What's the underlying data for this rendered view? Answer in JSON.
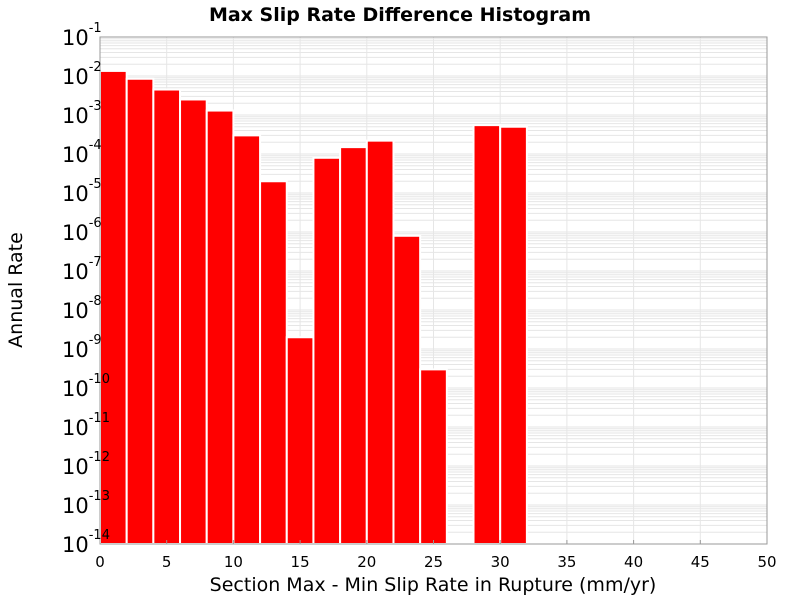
{
  "chart_data": {
    "type": "bar",
    "title": "Max Slip Rate Difference Histogram",
    "xlabel": "Section Max - Min Slip Rate in Rupture (mm/yr)",
    "ylabel": "Annual Rate",
    "x_bin_width": 2,
    "x": [
      1,
      3,
      5,
      7,
      9,
      11,
      13,
      15,
      17,
      19,
      21,
      23,
      25,
      27,
      29,
      31
    ],
    "values": [
      0.0135,
      0.0085,
      0.0045,
      0.0025,
      0.0013,
      0.0003,
      2e-05,
      2e-09,
      8e-05,
      0.00015,
      0.00022,
      8e-07,
      3e-10,
      1e-14,
      0.00055,
      0.0005
    ],
    "xlim": [
      0,
      50
    ],
    "ylim": [
      1e-14,
      0.1
    ],
    "yscale": "log",
    "xticks": [
      "0",
      "5",
      "10",
      "15",
      "20",
      "25",
      "30",
      "35",
      "40",
      "45",
      "50"
    ],
    "ytick_base": "10",
    "ytick_exponents": [
      "-1",
      "-2",
      "-3",
      "-4",
      "-5",
      "-6",
      "-7",
      "-8",
      "-9",
      "-10",
      "-11",
      "-12",
      "-13",
      "-14"
    ],
    "grid": true,
    "colors": {
      "bar": "#ff0000",
      "bar_edge": "#ffffff",
      "grid": "#e6e6e6",
      "axes": "#999999"
    }
  }
}
